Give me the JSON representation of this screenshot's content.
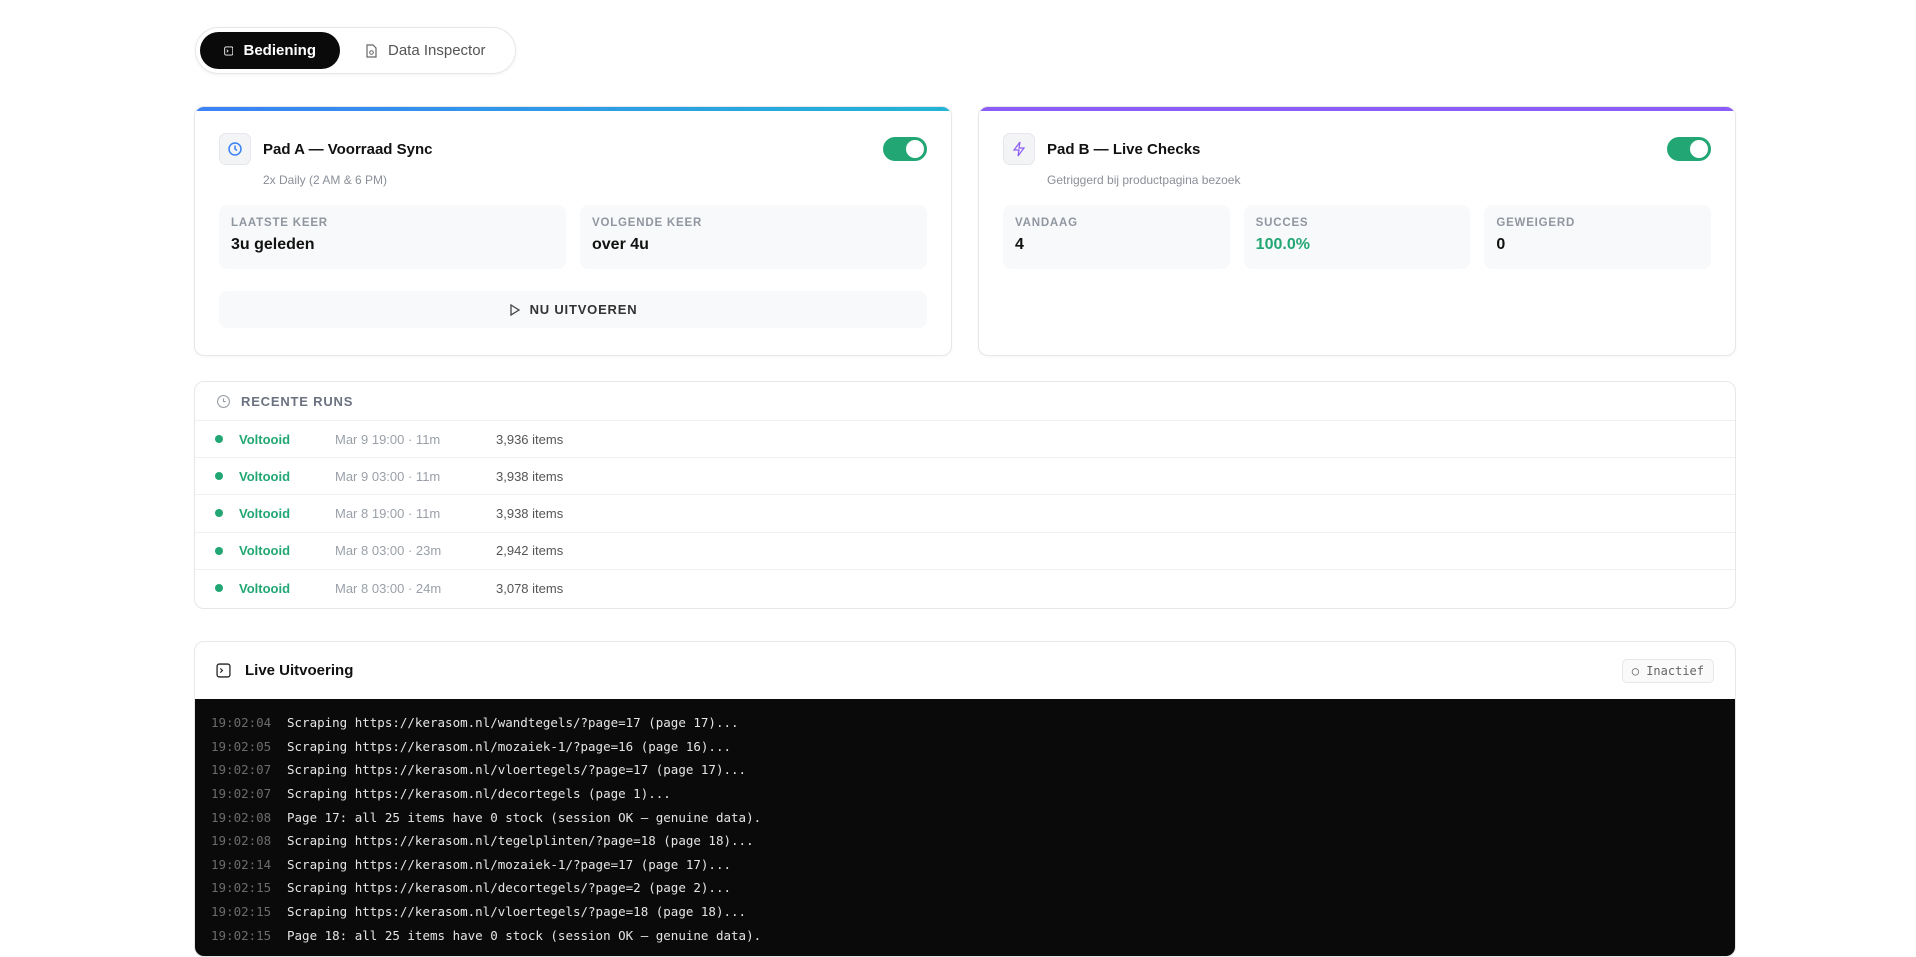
{
  "tabs": [
    {
      "label": "Bediening",
      "icon": "terminal-icon",
      "active": true
    },
    {
      "label": "Data Inspector",
      "icon": "file-search-icon",
      "active": false
    }
  ],
  "pad_a": {
    "title": "Pad A — Voorraad Sync",
    "subtitle": "2x Daily (2 AM & 6 PM)",
    "enabled": true,
    "accent": "#3b82f6",
    "stats": [
      {
        "label": "LAATSTE KEER",
        "value": "3u geleden"
      },
      {
        "label": "VOLGENDE KEER",
        "value": "over 4u"
      }
    ],
    "run_label": "NU UITVOEREN"
  },
  "pad_b": {
    "title": "Pad B — Live Checks",
    "subtitle": "Getriggerd bij productpagina bezoek",
    "enabled": true,
    "accent": "#8b5cf6",
    "stats": [
      {
        "label": "VANDAAG",
        "value": "4"
      },
      {
        "label": "SUCCES",
        "value": "100.0%",
        "color": "#22a774"
      },
      {
        "label": "GEWEIGERD",
        "value": "0"
      }
    ]
  },
  "recent_runs": {
    "title": "RECENTE RUNS",
    "rows": [
      {
        "status": "Voltooid",
        "time": "Mar 9 19:00 · 11m",
        "items": "3,936 items"
      },
      {
        "status": "Voltooid",
        "time": "Mar 9 03:00 · 11m",
        "items": "3,938 items"
      },
      {
        "status": "Voltooid",
        "time": "Mar 8 19:00 · 11m",
        "items": "3,938 items"
      },
      {
        "status": "Voltooid",
        "time": "Mar 8 03:00 · 23m",
        "items": "2,942 items"
      },
      {
        "status": "Voltooid",
        "time": "Mar 8 03:00 · 24m",
        "items": "3,078 items"
      }
    ]
  },
  "live": {
    "title": "Live Uitvoering",
    "status": "○ Inactief",
    "logs": [
      {
        "t": "19:02:04",
        "m": "Scraping https://kerasom.nl/wandtegels/?page=17 (page 17)..."
      },
      {
        "t": "19:02:05",
        "m": "Scraping https://kerasom.nl/mozaiek-1/?page=16 (page 16)..."
      },
      {
        "t": "19:02:07",
        "m": "Scraping https://kerasom.nl/vloertegels/?page=17 (page 17)..."
      },
      {
        "t": "19:02:07",
        "m": "Scraping https://kerasom.nl/decortegels (page 1)..."
      },
      {
        "t": "19:02:08",
        "m": "Page 17: all 25 items have 0 stock (session OK — genuine data)."
      },
      {
        "t": "19:02:08",
        "m": "Scraping https://kerasom.nl/tegelplinten/?page=18 (page 18)..."
      },
      {
        "t": "19:02:14",
        "m": "Scraping https://kerasom.nl/mozaiek-1/?page=17 (page 17)..."
      },
      {
        "t": "19:02:15",
        "m": "Scraping https://kerasom.nl/decortegels/?page=2 (page 2)..."
      },
      {
        "t": "19:02:15",
        "m": "Scraping https://kerasom.nl/vloertegels/?page=18 (page 18)..."
      },
      {
        "t": "19:02:15",
        "m": "Page 18: all 25 items have 0 stock (session OK — genuine data)."
      }
    ]
  }
}
